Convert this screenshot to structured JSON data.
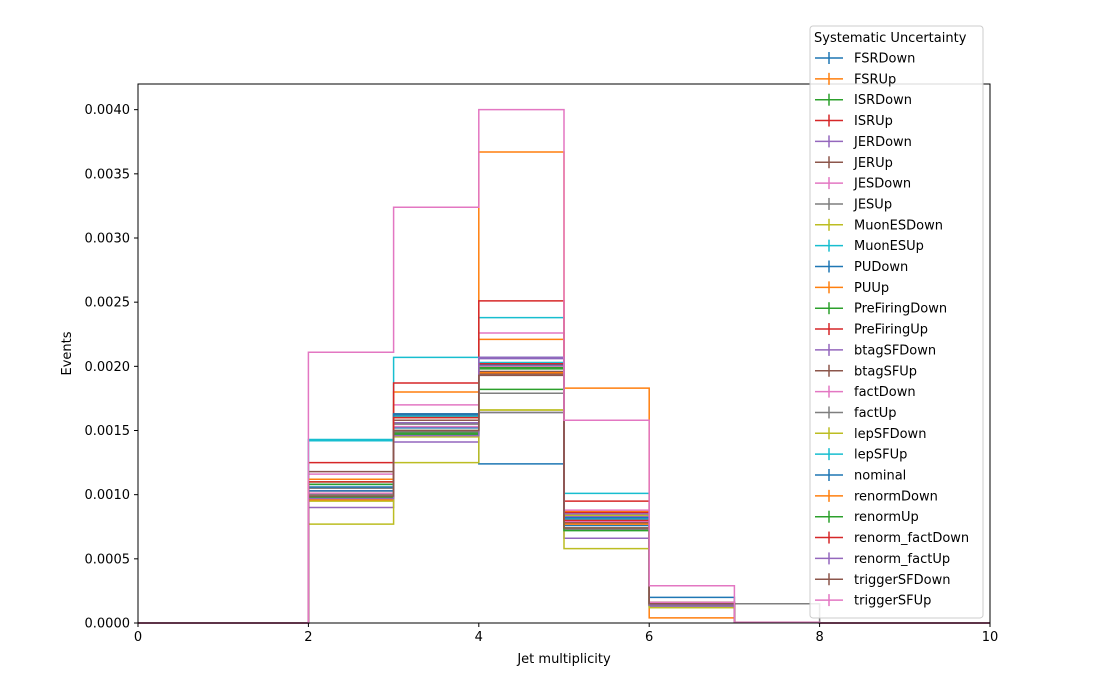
{
  "chart_data": {
    "type": "step-histogram",
    "xlabel": "Jet multiplicity",
    "ylabel": "Events",
    "xlim": [
      0,
      10
    ],
    "ylim": [
      0,
      0.0042
    ],
    "x_ticks": [
      "0",
      "2",
      "4",
      "6",
      "8",
      "10"
    ],
    "y_ticks": [
      "0.0000",
      "0.0005",
      "0.0010",
      "0.0015",
      "0.0020",
      "0.0025",
      "0.0030",
      "0.0035",
      "0.0040"
    ],
    "bin_edges": [
      0,
      1,
      2,
      3,
      4,
      5,
      6,
      7,
      8,
      9,
      10
    ],
    "legend_title": "Systematic Uncertainty",
    "legend_position": "top-right (outside)",
    "grid": false,
    "series": [
      {
        "name": "FSRDown",
        "color": "#1f77b4",
        "values": [
          0,
          0,
          0.00108,
          0.00162,
          0.00124,
          0.0008,
          0.0002,
          5e-06,
          0,
          0
        ]
      },
      {
        "name": "FSRUp",
        "color": "#ff7f0e",
        "values": [
          0,
          0,
          0.00103,
          0.00158,
          0.00221,
          0.00087,
          0.00016,
          5e-06,
          0,
          0
        ]
      },
      {
        "name": "ISRDown",
        "color": "#2ca02c",
        "values": [
          0,
          0,
          0.00108,
          0.0015,
          0.00182,
          0.00082,
          0.00015,
          5e-06,
          0,
          0
        ]
      },
      {
        "name": "ISRUp",
        "color": "#d62728",
        "values": [
          0,
          0,
          0.00101,
          0.00158,
          0.002,
          0.00086,
          0.00016,
          5e-06,
          0,
          0
        ]
      },
      {
        "name": "JERDown",
        "color": "#9467bd",
        "values": [
          0,
          0,
          0.00103,
          0.00156,
          0.00206,
          0.00083,
          0.00013,
          5e-06,
          0,
          0
        ]
      },
      {
        "name": "JERUp",
        "color": "#8c564b",
        "values": [
          0,
          0,
          0.00098,
          0.00158,
          0.00196,
          0.00078,
          0.00014,
          5e-06,
          0,
          0
        ]
      },
      {
        "name": "JESDown",
        "color": "#e377c2",
        "values": [
          0,
          0,
          0.00116,
          0.0017,
          0.00226,
          0.00079,
          0.00013,
          5e-06,
          0,
          0
        ]
      },
      {
        "name": "JESUp",
        "color": "#7f7f7f",
        "values": [
          0,
          0,
          0.00105,
          0.00155,
          0.00179,
          0.00074,
          0.00015,
          0.00015,
          0,
          0
        ]
      },
      {
        "name": "MuonESDown",
        "color": "#bcbd22",
        "values": [
          0,
          0,
          0.00095,
          0.00145,
          0.00166,
          0.00084,
          0.00012,
          5e-06,
          0,
          0
        ]
      },
      {
        "name": "MuonESUp",
        "color": "#17becf",
        "values": [
          0,
          0,
          0.00143,
          0.00207,
          0.00238,
          0.00101,
          0.00016,
          5e-06,
          0,
          0
        ]
      },
      {
        "name": "PUDown",
        "color": "#1f77b4",
        "values": [
          0,
          0,
          0.00106,
          0.00152,
          0.00201,
          0.00076,
          0.00014,
          5e-06,
          0,
          0
        ]
      },
      {
        "name": "PUUp",
        "color": "#ff7f0e",
        "values": [
          0,
          0,
          0.00096,
          0.0018,
          0.00367,
          0.00183,
          4e-05,
          5e-06,
          0,
          0
        ]
      },
      {
        "name": "PreFiringDown",
        "color": "#2ca02c",
        "values": [
          0,
          0,
          0.0011,
          0.00148,
          0.00198,
          0.00074,
          0.00014,
          5e-06,
          0,
          0
        ]
      },
      {
        "name": "PreFiringUp",
        "color": "#d62728",
        "values": [
          0,
          0,
          0.00125,
          0.00187,
          0.00251,
          0.00095,
          0.00016,
          5e-06,
          0,
          0
        ]
      },
      {
        "name": "btagSFDown",
        "color": "#9467bd",
        "values": [
          0,
          0,
          0.0009,
          0.00141,
          0.00164,
          0.00066,
          0.00013,
          5e-06,
          0,
          0
        ]
      },
      {
        "name": "btagSFUp",
        "color": "#8c564b",
        "values": [
          0,
          0,
          0.00118,
          0.00163,
          0.00194,
          0.00078,
          0.00015,
          5e-06,
          0,
          0
        ]
      },
      {
        "name": "factDown",
        "color": "#e377c2",
        "values": [
          0,
          0,
          0.00101,
          0.00153,
          0.002,
          0.00088,
          0.00016,
          5e-06,
          0,
          0
        ]
      },
      {
        "name": "factUp",
        "color": "#7f7f7f",
        "values": [
          0,
          0,
          0.001,
          0.00149,
          0.00164,
          0.00073,
          0.00014,
          5e-06,
          0,
          0
        ]
      },
      {
        "name": "lepSFDown",
        "color": "#bcbd22",
        "values": [
          0,
          0,
          0.00077,
          0.00125,
          0.00166,
          0.00058,
          0.00012,
          5e-06,
          0,
          0
        ]
      },
      {
        "name": "lepSFUp",
        "color": "#17becf",
        "values": [
          0,
          0,
          0.00142,
          0.00161,
          0.00203,
          0.00081,
          0.00015,
          5e-06,
          0,
          0
        ]
      },
      {
        "name": "nominal",
        "color": "#1f77b4",
        "values": [
          0,
          0,
          0.00103,
          0.00163,
          0.00207,
          0.00082,
          0.00014,
          5e-06,
          0,
          0
        ]
      },
      {
        "name": "renormDown",
        "color": "#ff7f0e",
        "values": [
          0,
          0,
          0.00112,
          0.0016,
          0.00195,
          0.00077,
          0.00014,
          5e-06,
          0,
          0
        ]
      },
      {
        "name": "renormUp",
        "color": "#2ca02c",
        "values": [
          0,
          0,
          0.00098,
          0.00147,
          0.00199,
          0.00072,
          0.00014,
          5e-06,
          0,
          0
        ]
      },
      {
        "name": "renorm_factDown",
        "color": "#d62728",
        "values": [
          0,
          0,
          0.0011,
          0.0016,
          0.00202,
          0.0008,
          0.00015,
          5e-06,
          0,
          0
        ]
      },
      {
        "name": "renorm_factUp",
        "color": "#9467bd",
        "values": [
          0,
          0,
          0.00097,
          0.00146,
          0.00207,
          0.00085,
          0.00014,
          5e-06,
          0,
          0
        ]
      },
      {
        "name": "triggerSFDown",
        "color": "#8c564b",
        "values": [
          0,
          0,
          0.00099,
          0.0015,
          0.00193,
          0.00074,
          0.00015,
          5e-06,
          0,
          0
        ]
      },
      {
        "name": "triggerSFUp",
        "color": "#e377c2",
        "values": [
          0,
          0,
          0.00211,
          0.00324,
          0.004,
          0.00158,
          0.00029,
          5e-06,
          0,
          0
        ]
      }
    ]
  }
}
